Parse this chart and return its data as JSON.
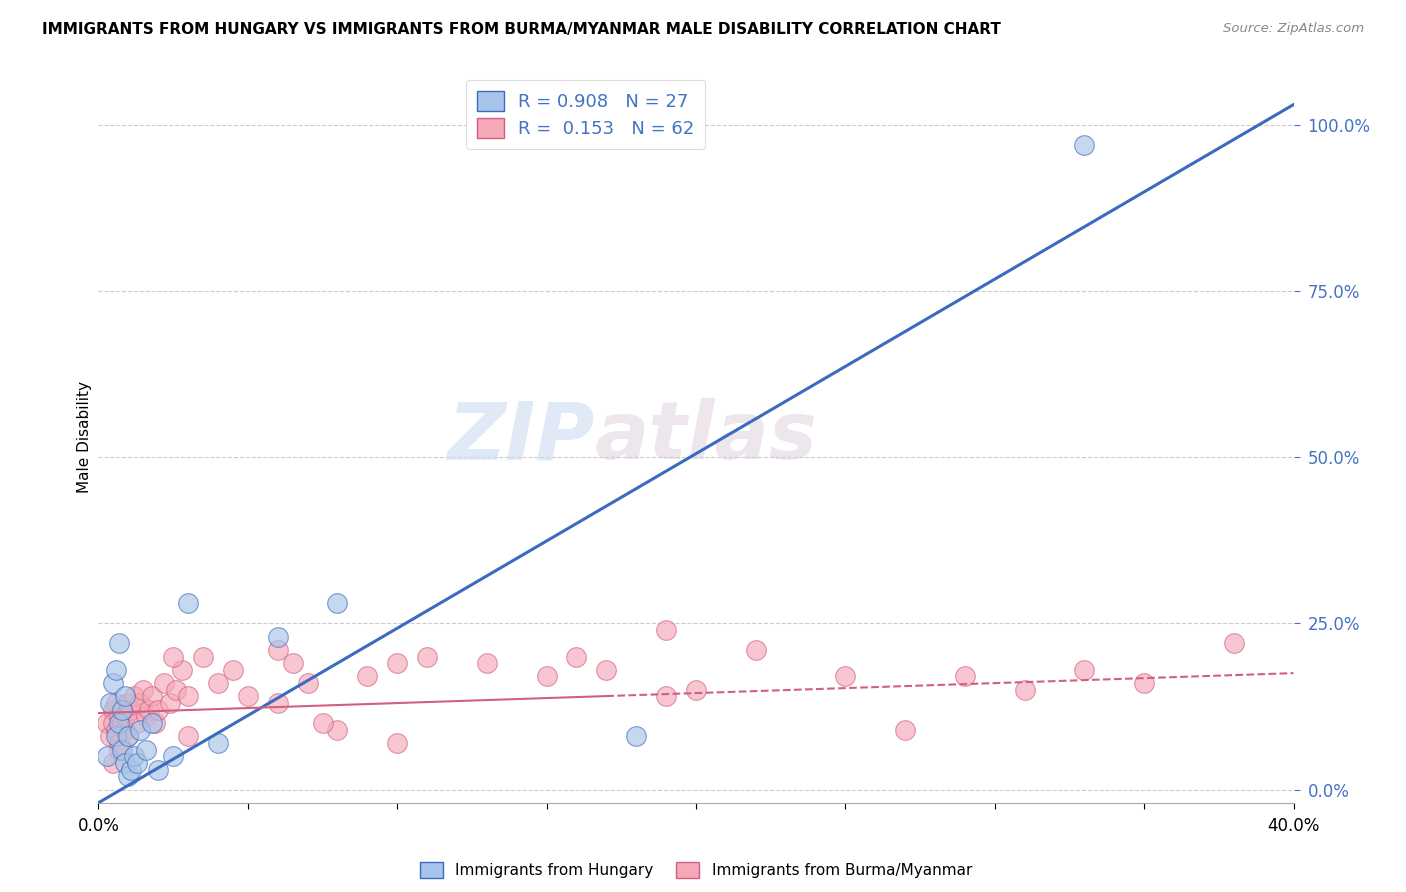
{
  "title": "IMMIGRANTS FROM HUNGARY VS IMMIGRANTS FROM BURMA/MYANMAR MALE DISABILITY CORRELATION CHART",
  "source": "Source: ZipAtlas.com",
  "ylabel": "Male Disability",
  "ytick_values": [
    0.0,
    0.25,
    0.5,
    0.75,
    1.0
  ],
  "ytick_labels": [
    "0.0%",
    "25.0%",
    "50.0%",
    "75.0%",
    "100.0%"
  ],
  "xlim": [
    0.0,
    0.4
  ],
  "ylim": [
    -0.02,
    1.08
  ],
  "legend_hungary": "Immigrants from Hungary",
  "legend_burma": "Immigrants from Burma/Myanmar",
  "R_hungary": "0.908",
  "N_hungary": "27",
  "R_burma": "0.153",
  "N_burma": "62",
  "color_hungary": "#a8c4e8",
  "color_burma": "#f4a8b8",
  "line_color_hungary": "#3a6bbf",
  "line_color_burma": "#d06080",
  "background_color": "#ffffff",
  "watermark_zip": "ZIP",
  "watermark_atlas": "atlas",
  "hungary_line_x0": 0.0,
  "hungary_line_y0": -0.02,
  "hungary_line_x1": 0.4,
  "hungary_line_y1": 1.03,
  "burma_line_x0": 0.0,
  "burma_line_y0": 0.115,
  "burma_line_x1": 0.4,
  "burma_line_y1": 0.175,
  "hungary_scatter_x": [
    0.003,
    0.004,
    0.005,
    0.006,
    0.006,
    0.007,
    0.007,
    0.008,
    0.008,
    0.009,
    0.009,
    0.01,
    0.01,
    0.011,
    0.012,
    0.013,
    0.014,
    0.016,
    0.018,
    0.02,
    0.025,
    0.03,
    0.04,
    0.06,
    0.08,
    0.18,
    0.33
  ],
  "hungary_scatter_y": [
    0.05,
    0.13,
    0.16,
    0.08,
    0.18,
    0.1,
    0.22,
    0.06,
    0.12,
    0.04,
    0.14,
    0.02,
    0.08,
    0.03,
    0.05,
    0.04,
    0.09,
    0.06,
    0.1,
    0.03,
    0.05,
    0.28,
    0.07,
    0.23,
    0.28,
    0.08,
    0.97
  ],
  "burma_scatter_x": [
    0.003,
    0.004,
    0.005,
    0.005,
    0.006,
    0.006,
    0.007,
    0.007,
    0.008,
    0.008,
    0.009,
    0.009,
    0.01,
    0.01,
    0.011,
    0.012,
    0.013,
    0.014,
    0.015,
    0.016,
    0.017,
    0.018,
    0.019,
    0.02,
    0.022,
    0.024,
    0.026,
    0.028,
    0.03,
    0.035,
    0.04,
    0.045,
    0.05,
    0.06,
    0.065,
    0.07,
    0.08,
    0.09,
    0.1,
    0.11,
    0.13,
    0.15,
    0.16,
    0.17,
    0.19,
    0.2,
    0.22,
    0.25,
    0.27,
    0.29,
    0.31,
    0.33,
    0.35,
    0.38,
    0.005,
    0.007,
    0.025,
    0.03,
    0.1,
    0.19,
    0.06,
    0.075
  ],
  "burma_scatter_y": [
    0.1,
    0.08,
    0.12,
    0.1,
    0.13,
    0.09,
    0.11,
    0.07,
    0.12,
    0.1,
    0.09,
    0.11,
    0.13,
    0.08,
    0.12,
    0.14,
    0.1,
    0.13,
    0.15,
    0.11,
    0.12,
    0.14,
    0.1,
    0.12,
    0.16,
    0.13,
    0.15,
    0.18,
    0.14,
    0.2,
    0.16,
    0.18,
    0.14,
    0.21,
    0.19,
    0.16,
    0.09,
    0.17,
    0.19,
    0.2,
    0.19,
    0.17,
    0.2,
    0.18,
    0.24,
    0.15,
    0.21,
    0.17,
    0.09,
    0.17,
    0.15,
    0.18,
    0.16,
    0.22,
    0.04,
    0.06,
    0.2,
    0.08,
    0.07,
    0.14,
    0.13,
    0.1
  ]
}
